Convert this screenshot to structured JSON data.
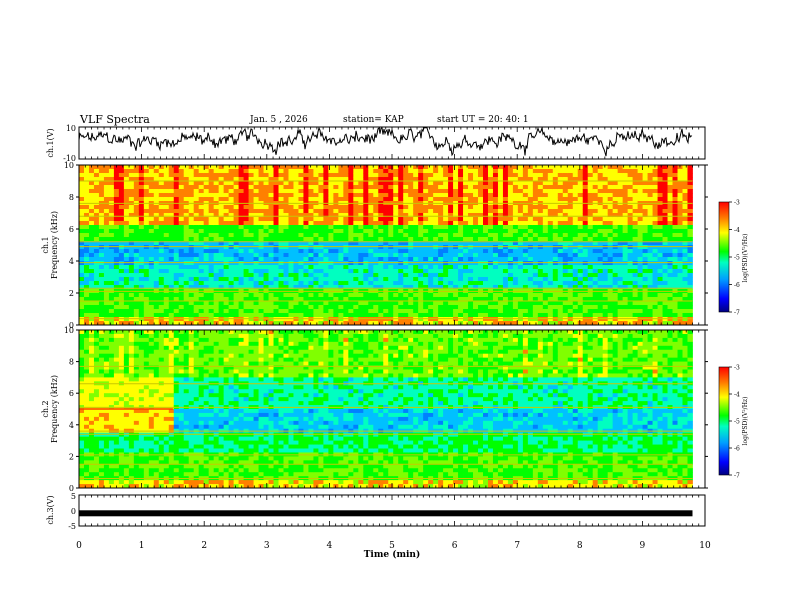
{
  "header": {
    "title": "VLF Spectra",
    "date": "Jan. 5 , 2026",
    "station": "station= KAP",
    "start_ut": "start UT = 20: 40: 1"
  },
  "chart_data": [
    {
      "type": "line",
      "panel": "ch1-waveform",
      "ylabel": "ch.1(V)",
      "ylim": [
        -10,
        10
      ],
      "yticks": [
        "10",
        "-10"
      ],
      "xlim": [
        0,
        10
      ],
      "series": [
        {
          "name": "ch.1 amplitude",
          "approx_mean": 2,
          "approx_range": [
            -10,
            10
          ]
        }
      ]
    },
    {
      "type": "heatmap",
      "panel": "ch1-spectrogram",
      "ylabel": "ch.1 Frequency (kHz)",
      "ylim": [
        0,
        10
      ],
      "yticks": [
        "0",
        "2",
        "4",
        "6",
        "8",
        "10"
      ],
      "xlim": [
        0,
        9.8
      ],
      "colorbar": {
        "label": "log(PSD)(V²/Hz)",
        "range": [
          -7,
          -3
        ],
        "ticks": [
          "-3",
          "-4",
          "-5",
          "-6",
          "-7"
        ]
      }
    },
    {
      "type": "heatmap",
      "panel": "ch2-spectrogram",
      "ylabel": "ch.2 Frequency (kHz)",
      "ylim": [
        0,
        10
      ],
      "yticks": [
        "0",
        "2",
        "4",
        "6",
        "8",
        "10"
      ],
      "xlim": [
        0,
        9.8
      ],
      "colorbar": {
        "label": "log(PSD)(V²/Hz)",
        "range": [
          -7,
          -3
        ],
        "ticks": [
          "-3",
          "-4",
          "-5",
          "-6",
          "-7"
        ]
      }
    },
    {
      "type": "line",
      "panel": "ch3-level",
      "ylabel": "ch.3(V)",
      "ylim": [
        -5,
        5
      ],
      "yticks": [
        "5",
        "0",
        "-5"
      ],
      "xlim": [
        0,
        10
      ],
      "series": [
        {
          "name": "ch.3 level",
          "values": [
            -0.9,
            -0.9
          ]
        }
      ]
    }
  ],
  "xaxis": {
    "label": "Time (min)",
    "ticks": [
      "0",
      "1",
      "2",
      "3",
      "4",
      "5",
      "6",
      "7",
      "8",
      "9",
      "10"
    ]
  },
  "colors": {
    "cmap": [
      "#000080",
      "#0000ff",
      "#0080ff",
      "#00c0ff",
      "#00ffc0",
      "#00ff00",
      "#80ff00",
      "#ffff00",
      "#ff8000",
      "#ff0000"
    ]
  }
}
